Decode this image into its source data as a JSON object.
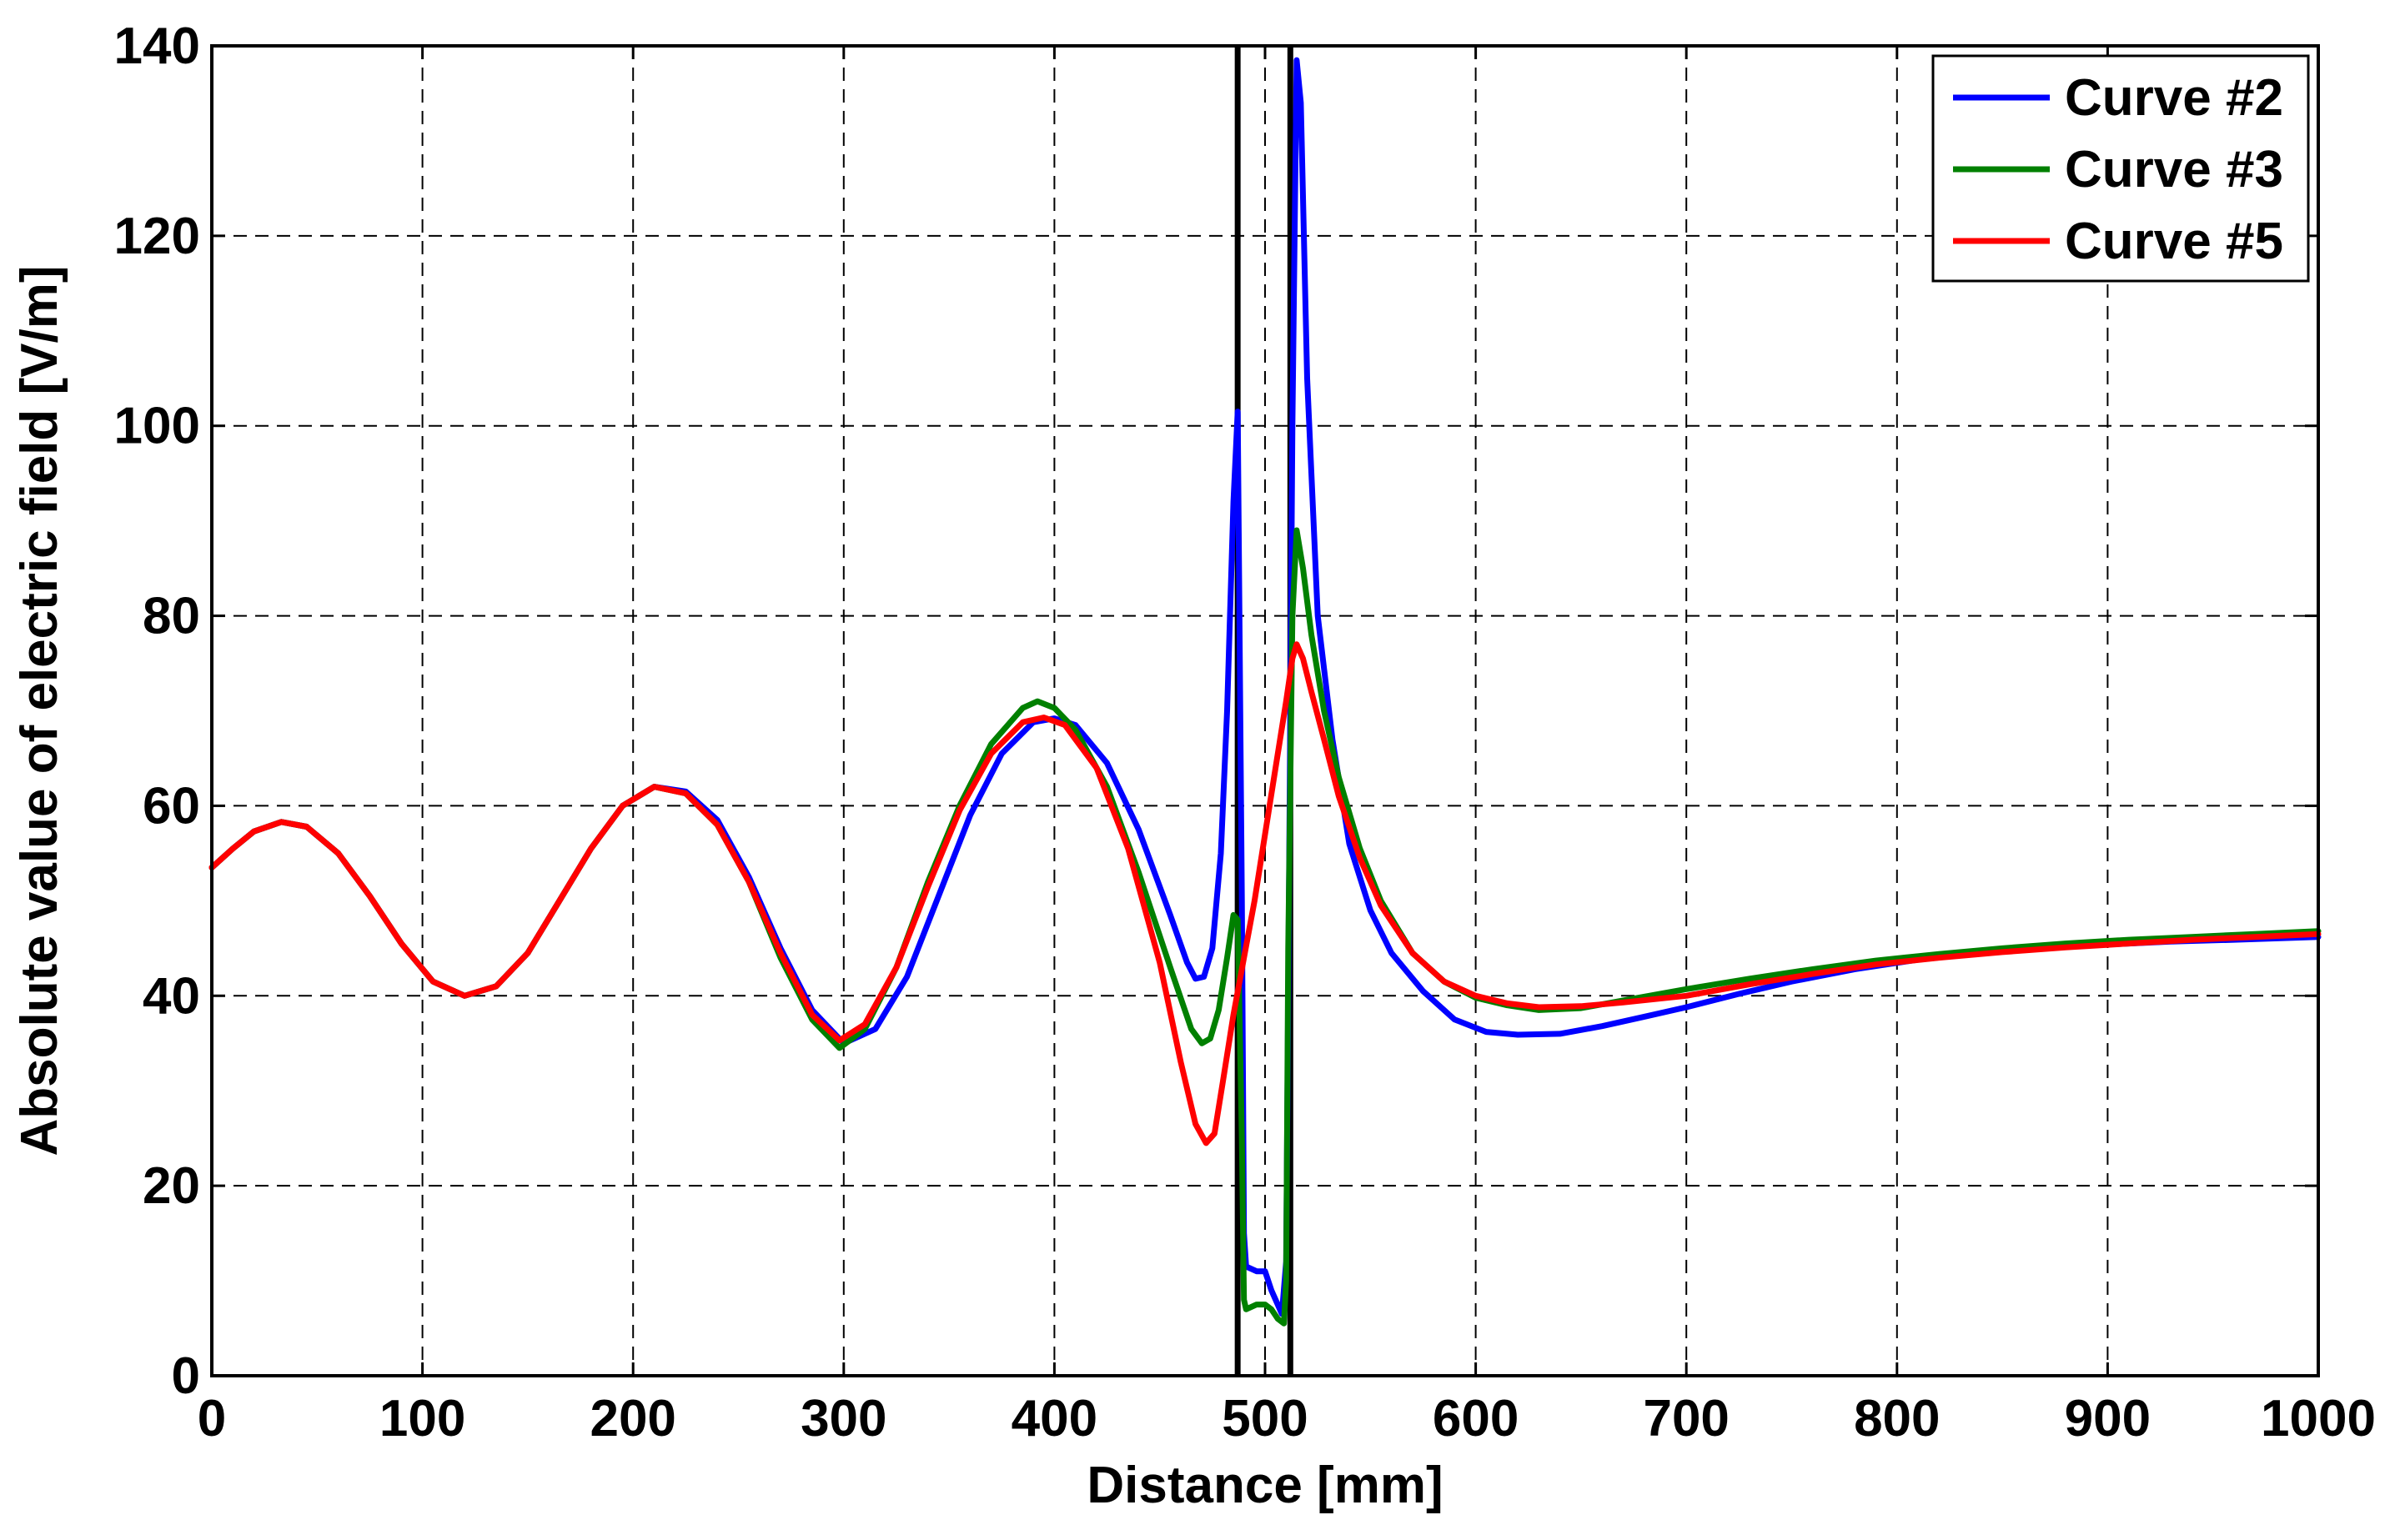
{
  "chart_data": {
    "type": "line",
    "title": "",
    "xlabel": "Distance [mm]",
    "ylabel": "Absolute value of electric field [V/m]",
    "xlim": [
      0,
      1000
    ],
    "ylim": [
      0,
      140
    ],
    "xticks": [
      0,
      100,
      200,
      300,
      400,
      500,
      600,
      700,
      800,
      900,
      1000
    ],
    "yticks": [
      0,
      20,
      40,
      60,
      80,
      100,
      120,
      140
    ],
    "grid": true,
    "legend_position": "top-right",
    "boundaries": [
      487,
      512
    ],
    "series": [
      {
        "name": "Curve #2",
        "color": "#0000ff",
        "points": [
          [
            0,
            53.5
          ],
          [
            10,
            55.5
          ],
          [
            20,
            57.3
          ],
          [
            33,
            58.3
          ],
          [
            45,
            57.8
          ],
          [
            60,
            55
          ],
          [
            75,
            50.5
          ],
          [
            90,
            45.5
          ],
          [
            105,
            41.5
          ],
          [
            120,
            40
          ],
          [
            135,
            41
          ],
          [
            150,
            44.5
          ],
          [
            165,
            50
          ],
          [
            180,
            55.5
          ],
          [
            195,
            60
          ],
          [
            210,
            62
          ],
          [
            225,
            61.5
          ],
          [
            240,
            58.5
          ],
          [
            255,
            52.5
          ],
          [
            270,
            45
          ],
          [
            285,
            38.5
          ],
          [
            300,
            35
          ],
          [
            315,
            36.5
          ],
          [
            330,
            42
          ],
          [
            345,
            50.5
          ],
          [
            360,
            59
          ],
          [
            375,
            65.5
          ],
          [
            390,
            68.8
          ],
          [
            400,
            69.2
          ],
          [
            410,
            68.5
          ],
          [
            425,
            64.5
          ],
          [
            440,
            57.5
          ],
          [
            455,
            48.5
          ],
          [
            463,
            43.5
          ],
          [
            467,
            41.8
          ],
          [
            471,
            42
          ],
          [
            475,
            45
          ],
          [
            479,
            55
          ],
          [
            482,
            70
          ],
          [
            485,
            92
          ],
          [
            487,
            101.5
          ],
          [
            489,
            50
          ],
          [
            490,
            15
          ],
          [
            491,
            11.5
          ],
          [
            496,
            11
          ],
          [
            500,
            11
          ],
          [
            503,
            9
          ],
          [
            506,
            7.5
          ],
          [
            508,
            6.5
          ],
          [
            510,
            12
          ],
          [
            511,
            40
          ],
          [
            513,
            100
          ],
          [
            515,
            138.5
          ],
          [
            517,
            134
          ],
          [
            520,
            105
          ],
          [
            525,
            80
          ],
          [
            532,
            67
          ],
          [
            540,
            56
          ],
          [
            550,
            49
          ],
          [
            560,
            44.5
          ],
          [
            575,
            40.5
          ],
          [
            590,
            37.5
          ],
          [
            605,
            36.2
          ],
          [
            620,
            35.9
          ],
          [
            640,
            36
          ],
          [
            660,
            36.8
          ],
          [
            680,
            37.8
          ],
          [
            700,
            38.8
          ],
          [
            725,
            40.2
          ],
          [
            750,
            41.5
          ],
          [
            780,
            42.8
          ],
          [
            810,
            43.8
          ],
          [
            840,
            44.5
          ],
          [
            870,
            45
          ],
          [
            900,
            45.4
          ],
          [
            930,
            45.7
          ],
          [
            960,
            45.9
          ],
          [
            1000,
            46.2
          ]
        ]
      },
      {
        "name": "Curve #3",
        "color": "#008000",
        "points": [
          [
            0,
            53.5
          ],
          [
            10,
            55.5
          ],
          [
            20,
            57.3
          ],
          [
            33,
            58.3
          ],
          [
            45,
            57.8
          ],
          [
            60,
            55
          ],
          [
            75,
            50.5
          ],
          [
            90,
            45.5
          ],
          [
            105,
            41.5
          ],
          [
            120,
            40
          ],
          [
            135,
            41
          ],
          [
            150,
            44.5
          ],
          [
            165,
            50
          ],
          [
            180,
            55.5
          ],
          [
            195,
            60
          ],
          [
            210,
            62
          ],
          [
            225,
            61.3
          ],
          [
            240,
            58
          ],
          [
            255,
            52
          ],
          [
            270,
            44
          ],
          [
            285,
            37.5
          ],
          [
            298,
            34.5
          ],
          [
            310,
            36.5
          ],
          [
            325,
            43
          ],
          [
            340,
            52
          ],
          [
            355,
            60
          ],
          [
            370,
            66.5
          ],
          [
            385,
            70.3
          ],
          [
            392,
            71
          ],
          [
            400,
            70.3
          ],
          [
            410,
            68
          ],
          [
            425,
            62
          ],
          [
            440,
            53
          ],
          [
            455,
            43
          ],
          [
            465,
            36.5
          ],
          [
            470,
            35
          ],
          [
            474,
            35.5
          ],
          [
            478,
            38.5
          ],
          [
            482,
            44
          ],
          [
            485,
            48.5
          ],
          [
            487,
            48
          ],
          [
            489,
            25
          ],
          [
            490,
            8
          ],
          [
            491,
            7
          ],
          [
            496,
            7.5
          ],
          [
            500,
            7.5
          ],
          [
            503,
            7
          ],
          [
            506,
            6
          ],
          [
            509,
            5.5
          ],
          [
            510,
            10
          ],
          [
            511,
            45
          ],
          [
            513,
            80
          ],
          [
            515,
            89
          ],
          [
            518,
            85
          ],
          [
            522,
            78
          ],
          [
            528,
            70
          ],
          [
            535,
            63
          ],
          [
            545,
            55.5
          ],
          [
            555,
            50
          ],
          [
            570,
            44.5
          ],
          [
            585,
            41.5
          ],
          [
            600,
            39.8
          ],
          [
            615,
            39
          ],
          [
            630,
            38.5
          ],
          [
            650,
            38.7
          ],
          [
            670,
            39.5
          ],
          [
            700,
            40.7
          ],
          [
            730,
            41.8
          ],
          [
            760,
            42.8
          ],
          [
            790,
            43.7
          ],
          [
            820,
            44.4
          ],
          [
            850,
            45
          ],
          [
            880,
            45.5
          ],
          [
            910,
            45.9
          ],
          [
            940,
            46.2
          ],
          [
            970,
            46.5
          ],
          [
            1000,
            46.8
          ]
        ]
      },
      {
        "name": "Curve #5",
        "color": "#ff0000",
        "points": [
          [
            0,
            53.5
          ],
          [
            10,
            55.5
          ],
          [
            20,
            57.3
          ],
          [
            33,
            58.3
          ],
          [
            45,
            57.8
          ],
          [
            60,
            55
          ],
          [
            75,
            50.5
          ],
          [
            90,
            45.5
          ],
          [
            105,
            41.5
          ],
          [
            120,
            40
          ],
          [
            135,
            41
          ],
          [
            150,
            44.5
          ],
          [
            165,
            50
          ],
          [
            180,
            55.5
          ],
          [
            195,
            60
          ],
          [
            210,
            62
          ],
          [
            225,
            61.3
          ],
          [
            240,
            58
          ],
          [
            255,
            52
          ],
          [
            270,
            44.5
          ],
          [
            285,
            38
          ],
          [
            298,
            35.3
          ],
          [
            310,
            37
          ],
          [
            325,
            43
          ],
          [
            340,
            51.5
          ],
          [
            355,
            59.5
          ],
          [
            370,
            65.5
          ],
          [
            385,
            68.8
          ],
          [
            395,
            69.3
          ],
          [
            405,
            68.5
          ],
          [
            420,
            64
          ],
          [
            435,
            55.5
          ],
          [
            450,
            43.5
          ],
          [
            460,
            33
          ],
          [
            467,
            26.5
          ],
          [
            472,
            24.5
          ],
          [
            476,
            25.5
          ],
          [
            480,
            31
          ],
          [
            485,
            38
          ],
          [
            490,
            44
          ],
          [
            495,
            50
          ],
          [
            500,
            57
          ],
          [
            505,
            64
          ],
          [
            510,
            71
          ],
          [
            513,
            75.5
          ],
          [
            515,
            77
          ],
          [
            518,
            75.5
          ],
          [
            522,
            72
          ],
          [
            528,
            67
          ],
          [
            535,
            61
          ],
          [
            545,
            54.5
          ],
          [
            555,
            49.5
          ],
          [
            570,
            44.5
          ],
          [
            585,
            41.5
          ],
          [
            600,
            40
          ],
          [
            615,
            39.2
          ],
          [
            630,
            38.8
          ],
          [
            650,
            38.9
          ],
          [
            670,
            39.3
          ],
          [
            700,
            40
          ],
          [
            730,
            41.2
          ],
          [
            760,
            42.3
          ],
          [
            790,
            43.3
          ],
          [
            820,
            44
          ],
          [
            850,
            44.6
          ],
          [
            880,
            45.1
          ],
          [
            910,
            45.5
          ],
          [
            940,
            45.9
          ],
          [
            970,
            46.2
          ],
          [
            1000,
            46.5
          ]
        ]
      }
    ]
  }
}
